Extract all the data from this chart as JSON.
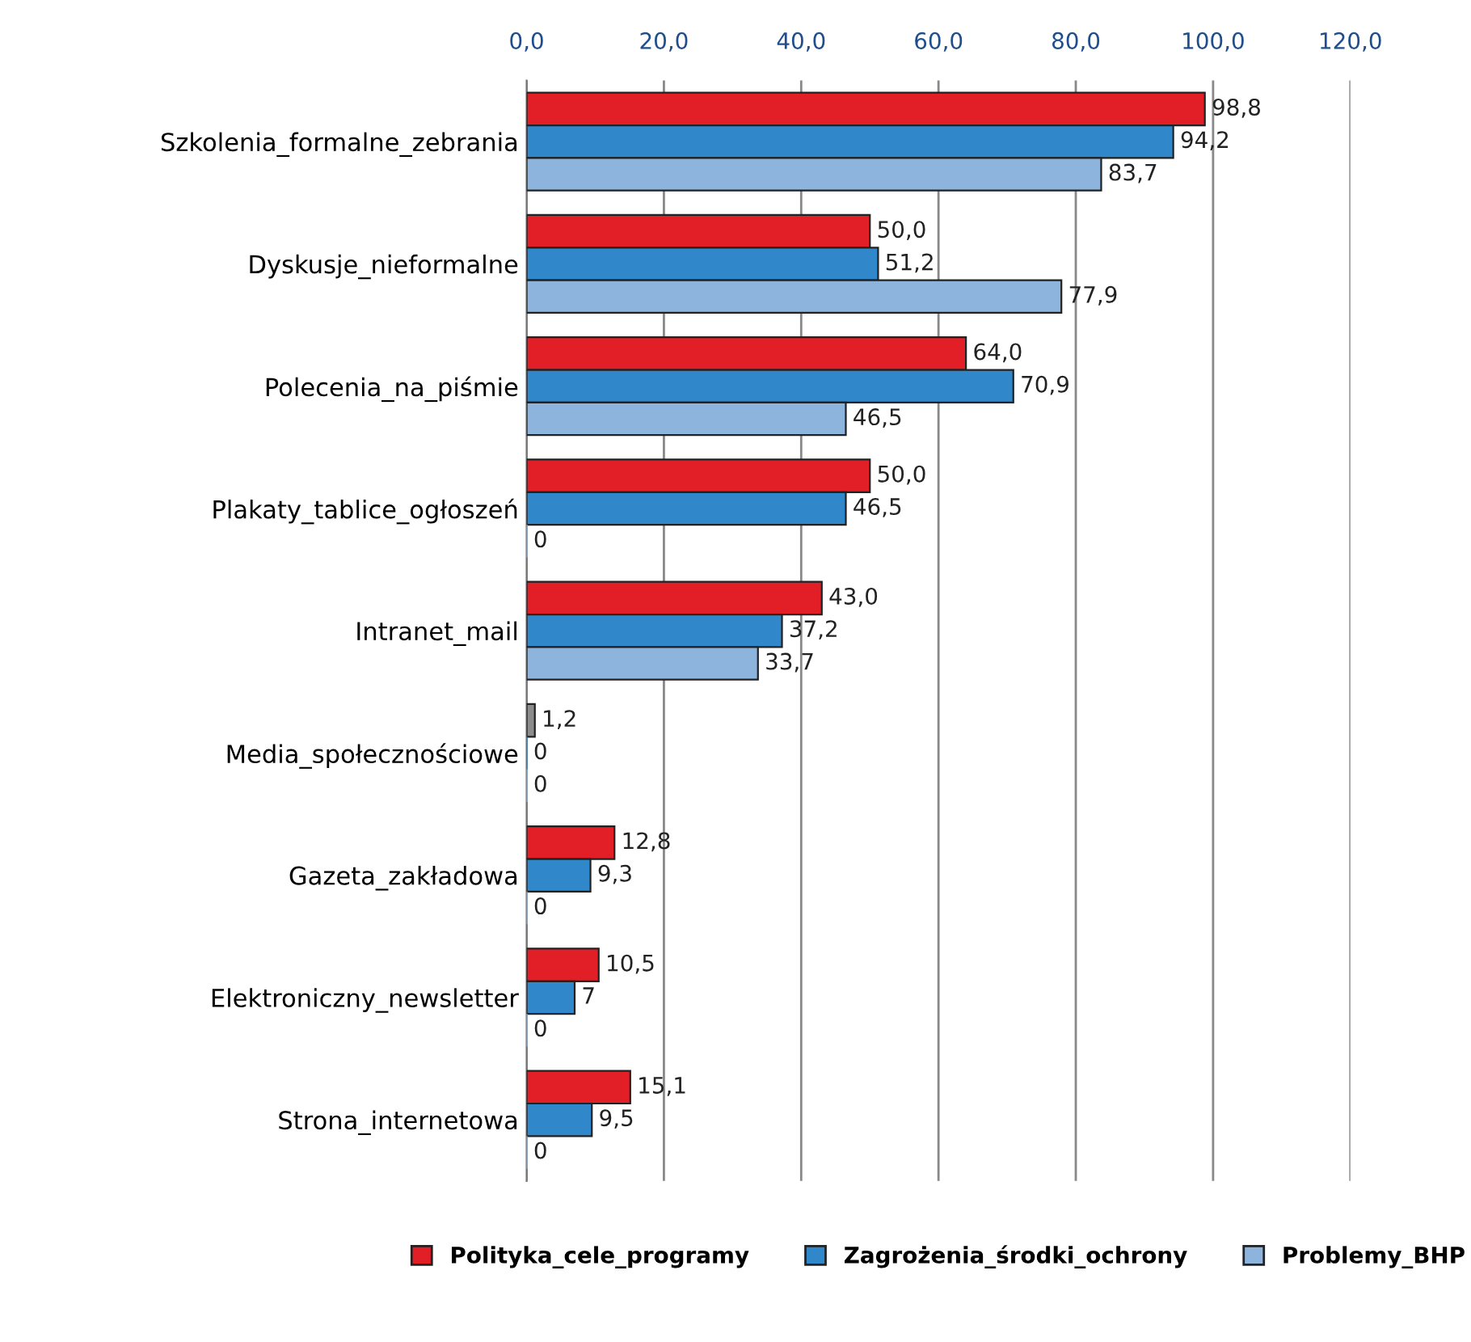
{
  "chart_data": {
    "type": "bar",
    "orientation": "horizontal",
    "categories": [
      "Szkolenia_formalne_zebrania",
      "Dyskusje_nieformalne",
      "Polecenia_na_piśmie",
      "Plakaty_tablice_ogłoszeń",
      "Intranet_mail",
      "Media_społecznościowe",
      "Gazeta_zakładowa",
      "Elektroniczny_newsletter",
      "Strona_internetowa"
    ],
    "series": [
      {
        "name": "Polityka_cele_programy",
        "color": "#e21e26",
        "colors": [
          "#e21e26",
          "#e21e26",
          "#e21e26",
          "#e21e26",
          "#e21e26",
          "#8c8c8c",
          "#e21e26",
          "#e21e26",
          "#e21e26"
        ],
        "values": [
          98.8,
          50.0,
          64.0,
          50.0,
          43.0,
          1.2,
          12.8,
          10.5,
          15.1
        ],
        "value_labels": [
          "98,8",
          "50,0",
          "64,0",
          "50,0",
          "43,0",
          "1,2",
          "12,8",
          "10,5",
          "15,1"
        ]
      },
      {
        "name": "Zagrożenia_środki_ochrony",
        "color": "#3087c9",
        "values": [
          94.2,
          51.2,
          70.9,
          46.5,
          37.2,
          0,
          9.3,
          7,
          9.5
        ],
        "value_labels": [
          "94,2",
          "51,2",
          "70,9",
          "46,5",
          "37,2",
          "0",
          "9,3",
          "7",
          "9,5"
        ]
      },
      {
        "name": "Problemy_BHP",
        "color": "#8db4dc",
        "values": [
          83.7,
          77.9,
          46.5,
          0,
          33.7,
          0,
          0,
          0,
          0
        ],
        "value_labels": [
          "83,7",
          "77,9",
          "46,5",
          "0",
          "33,7",
          "0",
          "0",
          "0",
          "0"
        ]
      }
    ],
    "xlim": [
      0,
      120
    ],
    "xticks": [
      {
        "value": 0,
        "label": "0,0"
      },
      {
        "value": 20,
        "label": "20,0"
      },
      {
        "value": 40,
        "label": "40,0"
      },
      {
        "value": 60,
        "label": "60,0"
      },
      {
        "value": 80,
        "label": "80,0"
      },
      {
        "value": 100,
        "label": "100,0"
      },
      {
        "value": 120,
        "label": "120,0"
      }
    ],
    "grid": "x",
    "legend": "bottom"
  }
}
